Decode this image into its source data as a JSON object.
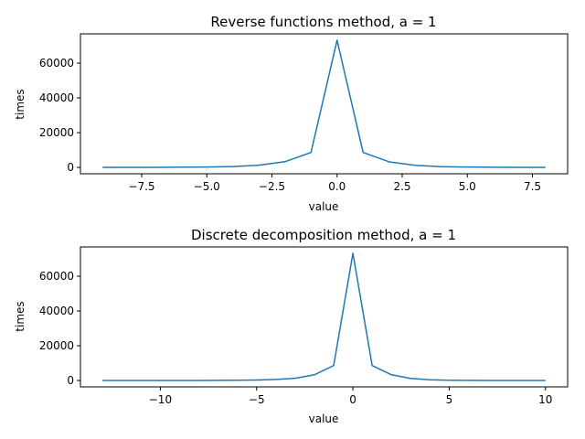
{
  "chart_data": [
    {
      "type": "line",
      "title": "Reverse functions method, a = 1",
      "xlabel": "value",
      "ylabel": "times",
      "xlim": [
        -9.85,
        8.85
      ],
      "ylim": [
        -3660,
        76860
      ],
      "xticks": [
        -7.5,
        -5.0,
        -2.5,
        0.0,
        2.5,
        5.0,
        7.5
      ],
      "xtick_labels": [
        "−7.5",
        "−5.0",
        "−2.5",
        "0.0",
        "2.5",
        "5.0",
        "7.5"
      ],
      "yticks": [
        0,
        20000,
        40000,
        60000
      ],
      "ytick_labels": [
        "0",
        "20000",
        "40000",
        "60000"
      ],
      "grid": false,
      "color": "#1f77b4",
      "series": [
        {
          "x": [
            -9,
            -8,
            -7,
            -6,
            -5,
            -4,
            -3,
            -2,
            -1,
            0,
            1,
            2,
            3,
            4,
            5,
            6,
            7,
            8
          ],
          "y": [
            10,
            20,
            50,
            130,
            250,
            500,
            1300,
            3300,
            8600,
            73200,
            8600,
            3200,
            1200,
            450,
            200,
            80,
            30,
            10
          ]
        }
      ]
    },
    {
      "type": "line",
      "title": "Discrete decomposition method, a = 1",
      "xlabel": "value",
      "ylabel": "times",
      "xlim": [
        -14.15,
        11.15
      ],
      "ylim": [
        -3660,
        76860
      ],
      "xticks": [
        -10,
        -5,
        0,
        5,
        10
      ],
      "xtick_labels": [
        "−10",
        "−5",
        "0",
        "5",
        "10"
      ],
      "yticks": [
        0,
        20000,
        40000,
        60000
      ],
      "ytick_labels": [
        "0",
        "20000",
        "40000",
        "60000"
      ],
      "grid": false,
      "color": "#1f77b4",
      "series": [
        {
          "x": [
            -13,
            -12,
            -11,
            -10,
            -9,
            -8,
            -7,
            -6,
            -5,
            -4,
            -3,
            -2,
            -1,
            0,
            1,
            2,
            3,
            4,
            5,
            6,
            7,
            8,
            9,
            10
          ],
          "y": [
            2,
            3,
            5,
            10,
            20,
            40,
            80,
            150,
            300,
            600,
            1300,
            3300,
            8600,
            73200,
            8600,
            3300,
            1200,
            450,
            180,
            70,
            30,
            12,
            5,
            2
          ]
        }
      ]
    }
  ]
}
